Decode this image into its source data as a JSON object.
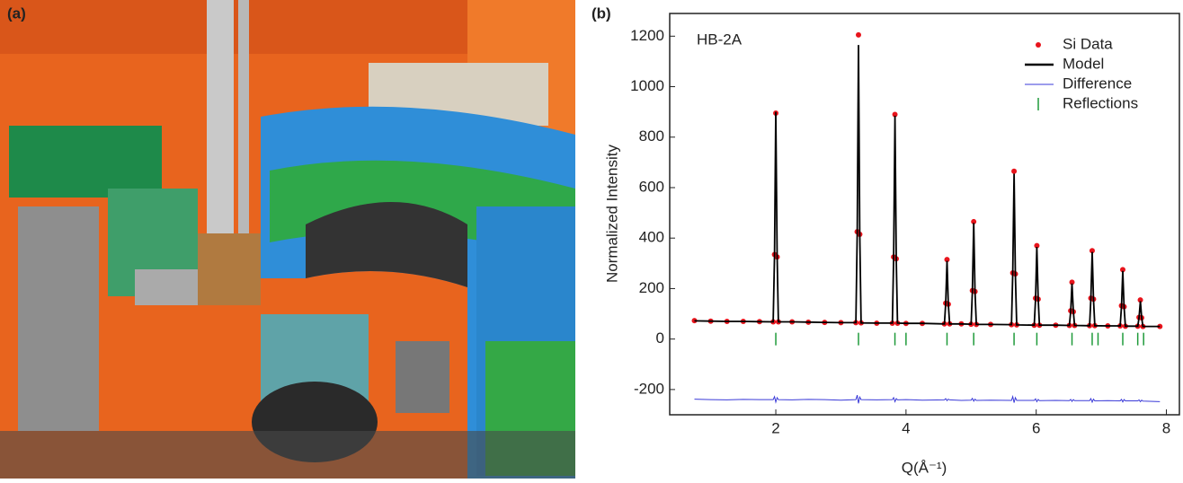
{
  "photo_label": "(a)",
  "chart_data": {
    "type": "line",
    "panel_label": "(b)",
    "annotation": "HB-2A",
    "xlabel": "Q(Å⁻¹)",
    "ylabel": "Normalized Intensity",
    "xlim": [
      0.37,
      8.2
    ],
    "ylim": [
      -300,
      1290
    ],
    "xticks": [
      2,
      4,
      6,
      8
    ],
    "yticks": [
      -200,
      0,
      200,
      400,
      600,
      800,
      1000,
      1200
    ],
    "legend": "upper right",
    "x": [
      0.75,
      1.0,
      1.25,
      1.5,
      1.75,
      1.96,
      1.98,
      2.0,
      2.02,
      2.04,
      2.25,
      2.5,
      2.75,
      3.0,
      3.23,
      3.25,
      3.27,
      3.29,
      3.31,
      3.55,
      3.79,
      3.81,
      3.83,
      3.85,
      3.87,
      4.0,
      4.25,
      4.59,
      4.61,
      4.63,
      4.65,
      4.67,
      4.85,
      5.0,
      5.02,
      5.04,
      5.06,
      5.08,
      5.3,
      5.62,
      5.64,
      5.66,
      5.68,
      5.7,
      5.97,
      5.99,
      6.01,
      6.03,
      6.05,
      6.3,
      6.51,
      6.53,
      6.55,
      6.57,
      6.59,
      6.82,
      6.84,
      6.86,
      6.88,
      6.9,
      7.1,
      7.29,
      7.31,
      7.33,
      7.35,
      7.37,
      7.56,
      7.58,
      7.6,
      7.62,
      7.64,
      7.9
    ],
    "series": [
      {
        "name": "Si Data",
        "kind": "scatter",
        "color": "#e8141c",
        "values": [
          73,
          71,
          70,
          70,
          69,
          68,
          335,
          895,
          325,
          68,
          68,
          67,
          66,
          65,
          65,
          425,
          1205,
          415,
          64,
          63,
          63,
          325,
          890,
          318,
          63,
          62,
          62,
          60,
          142,
          315,
          138,
          60,
          60,
          59,
          192,
          465,
          188,
          58,
          58,
          57,
          262,
          665,
          258,
          56,
          55,
          162,
          370,
          158,
          55,
          55,
          54,
          112,
          225,
          108,
          54,
          53,
          162,
          350,
          158,
          53,
          52,
          52,
          132,
          275,
          128,
          51,
          51,
          86,
          155,
          84,
          50,
          50
        ]
      },
      {
        "name": "Model",
        "kind": "line",
        "color": "#000000",
        "values": [
          72,
          71,
          70,
          70,
          69,
          68,
          330,
          900,
          330,
          68,
          68,
          67,
          66,
          65,
          65,
          420,
          1165,
          420,
          64,
          63,
          63,
          320,
          885,
          320,
          63,
          62,
          62,
          60,
          140,
          310,
          140,
          60,
          60,
          59,
          190,
          460,
          190,
          58,
          58,
          57,
          260,
          655,
          260,
          56,
          55,
          160,
          365,
          160,
          55,
          55,
          54,
          110,
          220,
          110,
          54,
          53,
          160,
          345,
          160,
          53,
          52,
          52,
          130,
          270,
          130,
          51,
          51,
          85,
          150,
          85,
          50,
          50
        ]
      },
      {
        "name": "Difference",
        "kind": "line",
        "color": "#3a3ad8",
        "values": [
          -238,
          -240,
          -241,
          -239,
          -240,
          -240,
          -228,
          -250,
          -232,
          -240,
          -241,
          -239,
          -240,
          -242,
          -240,
          -222,
          -255,
          -230,
          -240,
          -241,
          -240,
          -232,
          -248,
          -236,
          -241,
          -240,
          -242,
          -241,
          -236,
          -244,
          -238,
          -241,
          -243,
          -242,
          -235,
          -246,
          -238,
          -243,
          -242,
          -243,
          -228,
          -252,
          -232,
          -243,
          -243,
          -237,
          -248,
          -239,
          -244,
          -243,
          -244,
          -239,
          -247,
          -240,
          -244,
          -244,
          -236,
          -250,
          -238,
          -245,
          -244,
          -245,
          -239,
          -249,
          -240,
          -245,
          -245,
          -241,
          -248,
          -242,
          -246,
          -248
        ]
      }
    ],
    "reflections": {
      "name": "Reflections",
      "color": "#1f9a3a",
      "x": [
        2.0,
        3.27,
        3.83,
        4.0,
        4.63,
        5.04,
        5.66,
        6.01,
        6.55,
        6.86,
        6.95,
        7.33,
        7.56,
        7.65
      ]
    }
  }
}
